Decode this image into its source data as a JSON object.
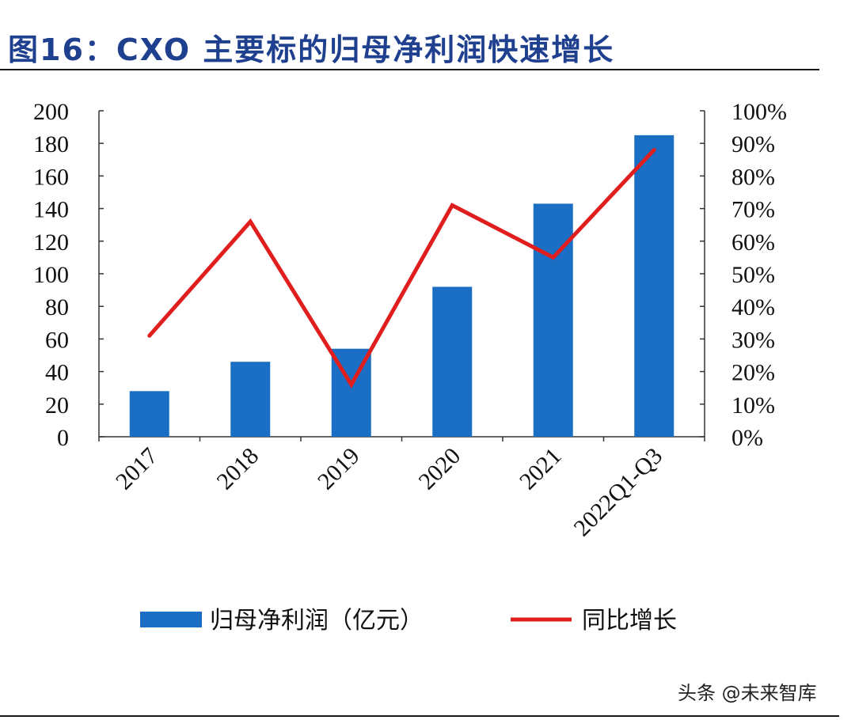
{
  "header": {
    "title": "图16：CXO 主要标的归母净利润快速增长"
  },
  "watermark": {
    "text": "头条 @未来智库"
  },
  "colors": {
    "bar": "#1a6fc4",
    "line": "#e01e1e",
    "title": "#1f3f8f"
  },
  "chart_data": {
    "type": "bar",
    "title": "",
    "categories": [
      "2017",
      "2018",
      "2019",
      "2020",
      "2021",
      "2022Q1-Q3"
    ],
    "series": [
      {
        "name": "归母净利润（亿元）",
        "type": "bar",
        "axis": "left",
        "values": [
          28,
          46,
          54,
          92,
          143,
          185
        ]
      },
      {
        "name": "同比增长",
        "type": "line",
        "axis": "right",
        "values": [
          0.31,
          0.66,
          0.16,
          0.71,
          0.55,
          0.88
        ]
      }
    ],
    "y_left": {
      "min": 0,
      "max": 200,
      "ticks": [
        "0",
        "20",
        "40",
        "60",
        "80",
        "100",
        "120",
        "140",
        "160",
        "180",
        "200"
      ]
    },
    "y_right": {
      "min": 0,
      "max": 1,
      "ticks": [
        "0%",
        "10%",
        "20%",
        "30%",
        "40%",
        "50%",
        "60%",
        "70%",
        "80%",
        "90%",
        "100%"
      ]
    },
    "grid": false,
    "legend_position": "bottom"
  }
}
